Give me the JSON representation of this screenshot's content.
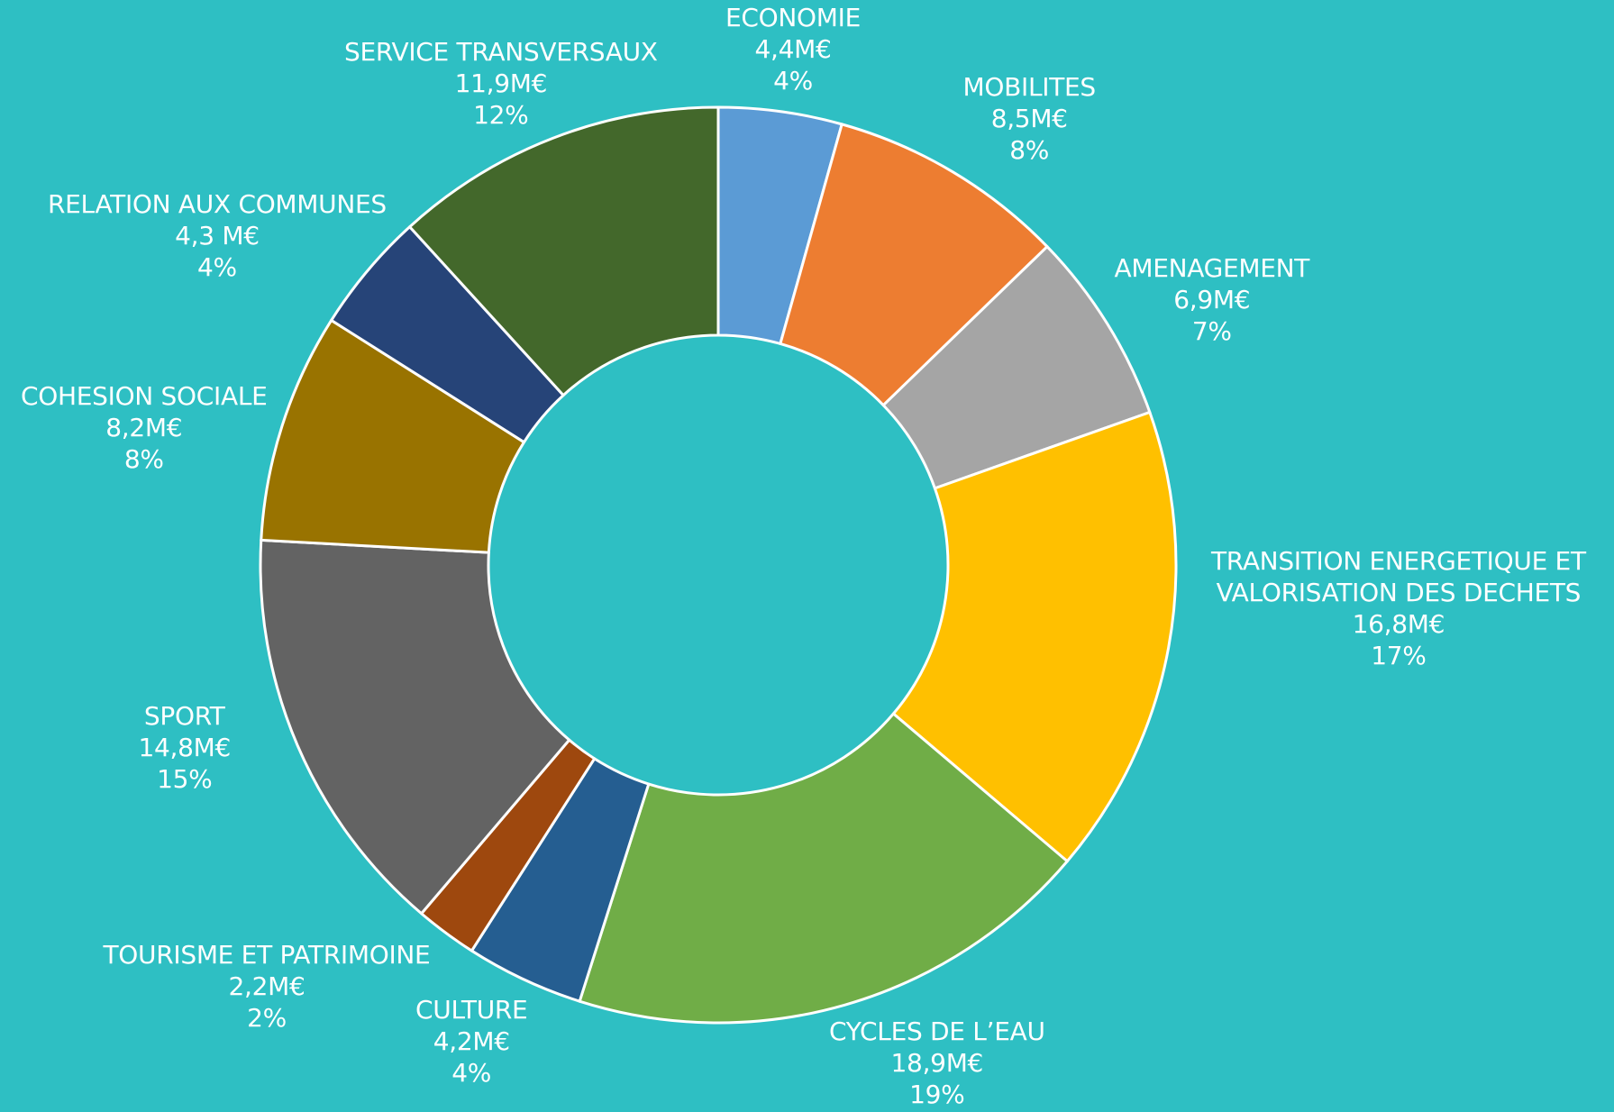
{
  "chart_data": {
    "type": "pie",
    "donut": true,
    "background": "#2ebfc3",
    "slices": [
      {
        "key": "economie",
        "lines": [
          "ECONOMIE"
        ],
        "value_label": "4,4M€",
        "value": 4.4,
        "percent_label": "4%",
        "color": "#5b9bd5"
      },
      {
        "key": "mobilites",
        "lines": [
          "MOBILITES"
        ],
        "value_label": "8,5M€",
        "value": 8.5,
        "percent_label": "8%",
        "color": "#ed7d31"
      },
      {
        "key": "amenagement",
        "lines": [
          "AMENAGEMENT"
        ],
        "value_label": "6,9M€",
        "value": 6.9,
        "percent_label": "7%",
        "color": "#a5a5a5"
      },
      {
        "key": "transition",
        "lines": [
          "TRANSITION ENERGETIQUE ET",
          "VALORISATION DES DECHETS"
        ],
        "value_label": "16,8M€",
        "value": 16.8,
        "percent_label": "17%",
        "color": "#ffc000"
      },
      {
        "key": "cycles",
        "lines": [
          "CYCLES DE L’EAU"
        ],
        "value_label": "18,9M€",
        "value": 18.9,
        "percent_label": "19%",
        "color": "#70ad47"
      },
      {
        "key": "culture",
        "lines": [
          "CULTURE"
        ],
        "value_label": "4,2M€",
        "value": 4.2,
        "percent_label": "4%",
        "color": "#255e91"
      },
      {
        "key": "tourisme",
        "lines": [
          "TOURISME ET PATRIMOINE"
        ],
        "value_label": "2,2M€",
        "value": 2.2,
        "percent_label": "2%",
        "color": "#9e480e"
      },
      {
        "key": "sport",
        "lines": [
          "SPORT"
        ],
        "value_label": "14,8M€",
        "value": 14.8,
        "percent_label": "15%",
        "color": "#636363"
      },
      {
        "key": "cohesion",
        "lines": [
          "COHESION SOCIALE"
        ],
        "value_label": "8,2M€",
        "value": 8.2,
        "percent_label": "8%",
        "color": "#997300"
      },
      {
        "key": "relation",
        "lines": [
          "RELATION AUX COMMUNES"
        ],
        "value_label": "4,3 M€",
        "value": 4.3,
        "percent_label": "4%",
        "color": "#264478"
      },
      {
        "key": "service",
        "lines": [
          "SERVICE TRANSVERSAUX"
        ],
        "value_label": "11,9M€",
        "value": 11.9,
        "percent_label": "12%",
        "color": "#43682b"
      }
    ]
  }
}
